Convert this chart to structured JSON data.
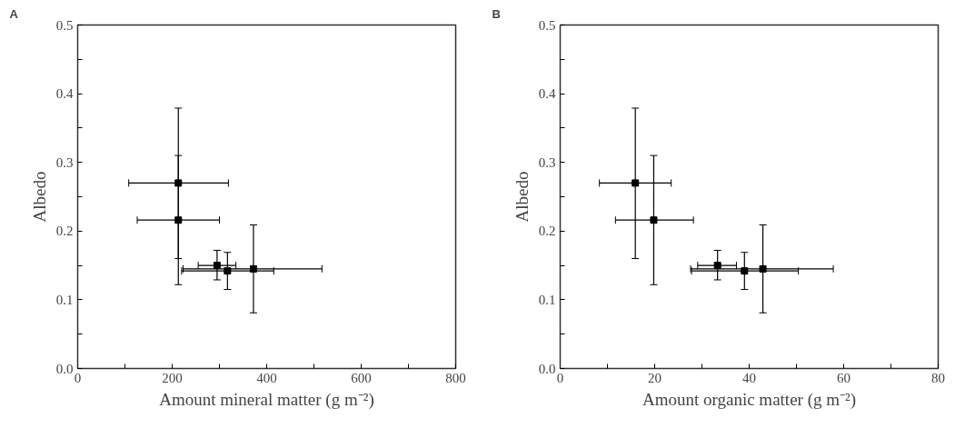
{
  "chart_data": [
    {
      "type": "scatter",
      "title": "A",
      "xlabel": "Amount mineral matter (g m⁻²)",
      "ylabel": "Albedo",
      "marker": "square",
      "grid": false,
      "x": [
        213,
        213,
        295,
        317,
        372
      ],
      "values": [
        0.27,
        0.216,
        0.15,
        0.142,
        0.145
      ],
      "errors": [
        [
          0.16,
          0.379
        ],
        [
          0.122,
          0.31
        ],
        [
          0.129,
          0.172
        ],
        [
          0.115,
          0.169
        ],
        [
          0.081,
          0.209
        ]
      ],
      "xerrors": [
        [
          108,
          319
        ],
        [
          126,
          300
        ],
        [
          255,
          335
        ],
        [
          220,
          415
        ],
        [
          223,
          517
        ]
      ],
      "color": "#000000",
      "xlim": [
        0,
        800
      ],
      "ylim": [
        0,
        0.5
      ],
      "xticks": [
        0,
        {
          "value": 100,
          "label": null
        },
        200,
        {
          "value": 300,
          "label": null
        },
        400,
        {
          "value": 500,
          "label": null
        },
        600,
        {
          "value": 700,
          "label": null
        },
        800
      ],
      "yticks": [
        {
          "value": 0,
          "label": "0.0"
        },
        {
          "value": 0.05,
          "label": null
        },
        0.1,
        {
          "value": 0.15,
          "label": null
        },
        0.2,
        {
          "value": 0.25,
          "label": null
        },
        0.3,
        {
          "value": 0.35,
          "label": null
        },
        0.4,
        {
          "value": 0.45,
          "label": null
        },
        0.5
      ]
    },
    {
      "type": "scatter",
      "title": "B",
      "xlabel": "Amount organic matter (g m⁻²)",
      "ylabel": "Albedo",
      "marker": "square",
      "grid": false,
      "x": [
        15.9,
        19.8,
        33.3,
        39.0,
        42.9
      ],
      "values": [
        0.27,
        0.216,
        0.15,
        0.142,
        0.145
      ],
      "errors": [
        [
          0.16,
          0.379
        ],
        [
          0.122,
          0.31
        ],
        [
          0.129,
          0.172
        ],
        [
          0.115,
          0.169
        ],
        [
          0.081,
          0.209
        ]
      ],
      "xerrors": [
        [
          8.3,
          23.5
        ],
        [
          11.7,
          28.2
        ],
        [
          29.1,
          37.3
        ],
        [
          27.8,
          50.4
        ],
        [
          27.6,
          57.8
        ]
      ],
      "color": "#000000",
      "xlim": [
        0,
        80
      ],
      "ylim": [
        0,
        0.5
      ],
      "xticks": [
        0,
        {
          "value": 10,
          "label": null
        },
        20,
        {
          "value": 30,
          "label": null
        },
        40,
        {
          "value": 50,
          "label": null
        },
        60,
        {
          "value": 70,
          "label": null
        },
        80
      ],
      "yticks": [
        {
          "value": 0,
          "label": "0.0"
        },
        {
          "value": 0.05,
          "label": null
        },
        0.1,
        {
          "value": 0.15,
          "label": null
        },
        0.2,
        {
          "value": 0.25,
          "label": null
        },
        0.3,
        {
          "value": 0.35,
          "label": null
        },
        0.4,
        {
          "value": 0.45,
          "label": null
        },
        0.5
      ]
    }
  ]
}
